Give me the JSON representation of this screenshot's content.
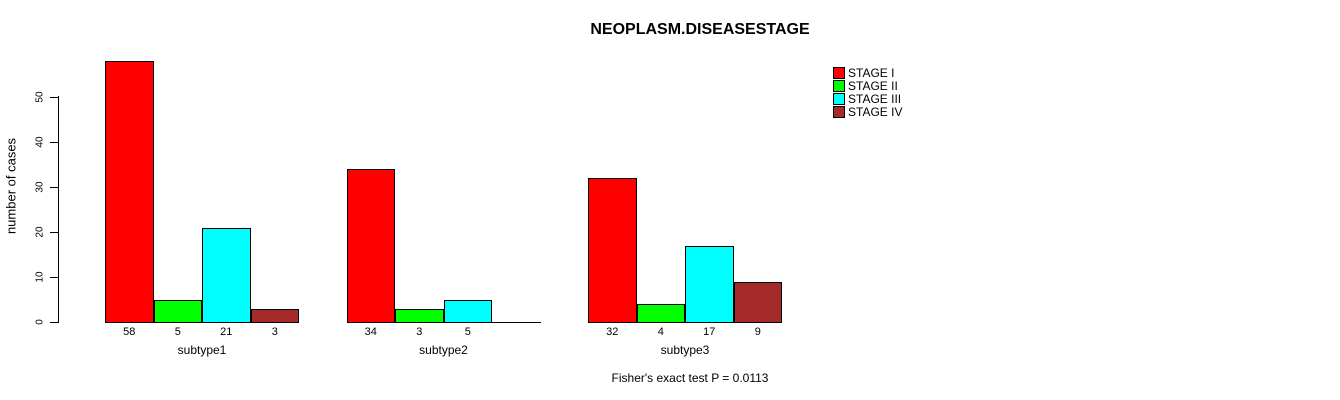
{
  "title": "NEOPLASM.DISEASESTAGE",
  "ylabel": "number of cases",
  "footer": "Fisher's exact test P = 0.0113",
  "chart_data": {
    "type": "bar",
    "grouped": true,
    "categories": [
      "subtype1",
      "subtype2",
      "subtype3"
    ],
    "series": [
      {
        "name": "STAGE I",
        "color": "#FF0000",
        "values": [
          58,
          34,
          32
        ]
      },
      {
        "name": "STAGE II",
        "color": "#00FF00",
        "values": [
          5,
          3,
          4
        ]
      },
      {
        "name": "STAGE III",
        "color": "#00FFFF",
        "values": [
          21,
          5,
          17
        ]
      },
      {
        "name": "STAGE IV",
        "color": "#A52A2A",
        "values": [
          3,
          0,
          9
        ]
      }
    ],
    "bar_value_labels": [
      [
        "58",
        "5",
        "21",
        "3"
      ],
      [
        "34",
        "3",
        "5",
        ""
      ],
      [
        "32",
        "4",
        "17",
        "9"
      ]
    ],
    "title": "NEOPLASM.DISEASESTAGE",
    "ylabel": "number of cases",
    "xlabel": "",
    "yticks": [
      0,
      10,
      20,
      30,
      40,
      50
    ],
    "ylim": [
      0,
      58
    ],
    "grid": false,
    "legend_position": "top-right",
    "legend_entries": [
      "STAGE I",
      "STAGE II",
      "STAGE III",
      "STAGE IV"
    ],
    "annotation": "Fisher's exact test P = 0.0113",
    "background": "#FFFFFF",
    "bar_border_color": "#000000"
  }
}
